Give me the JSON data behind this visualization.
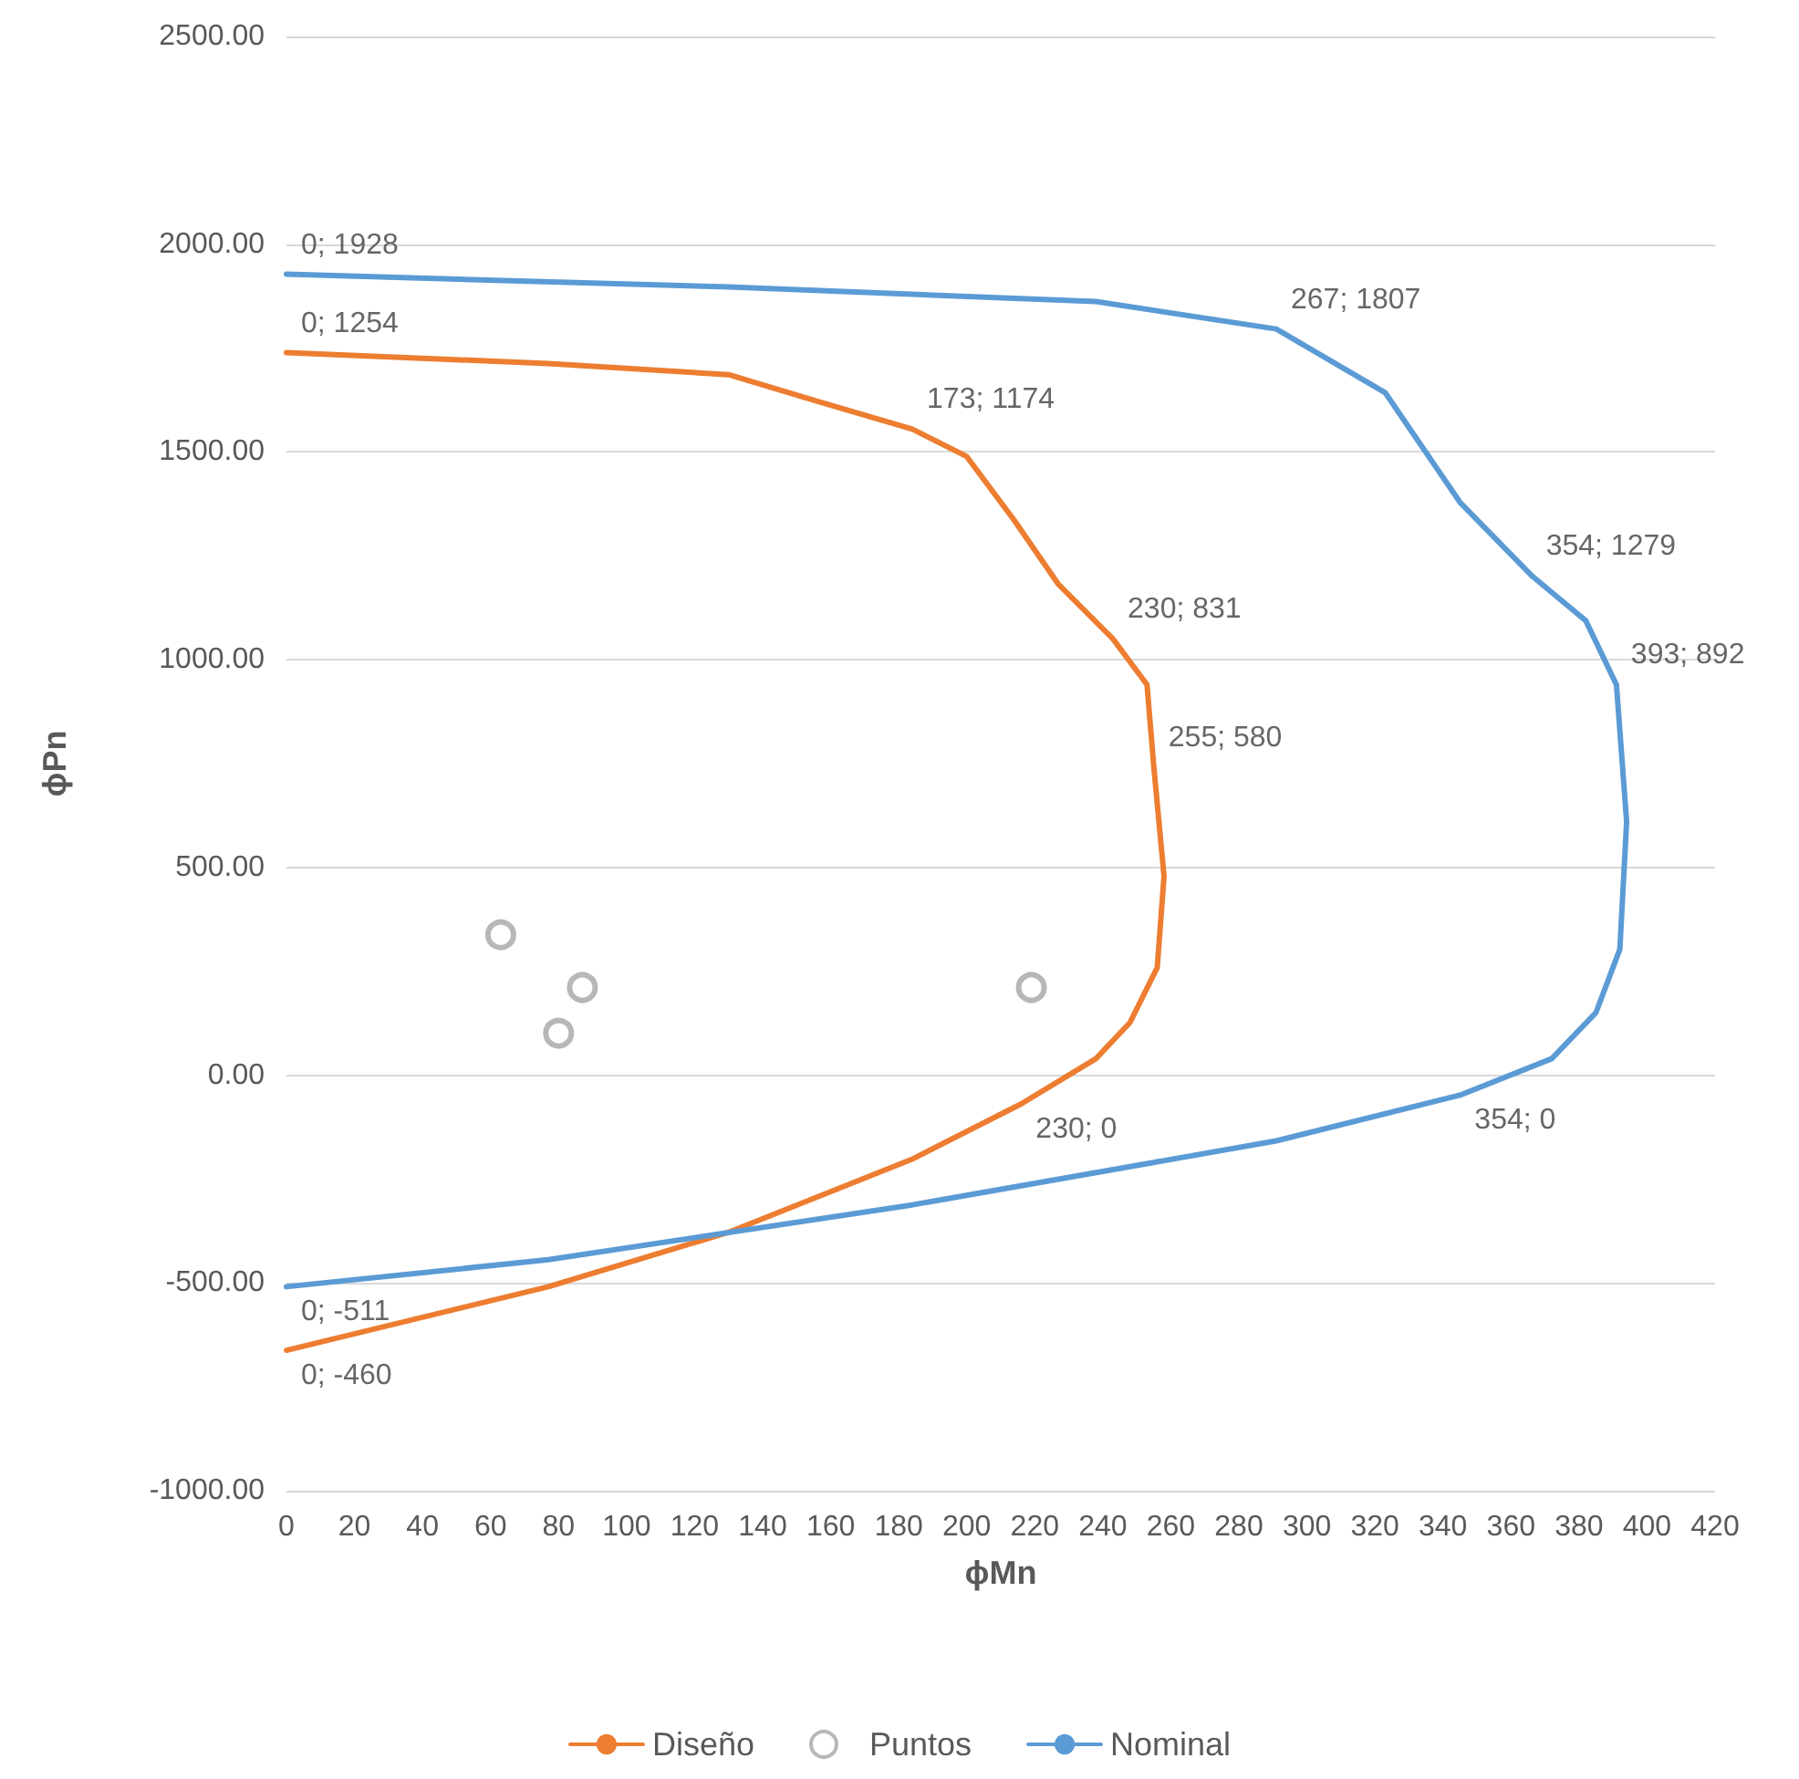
{
  "chart_data": {
    "type": "line",
    "xlabel": "ϕMn",
    "ylabel": "ϕPn",
    "xlim": [
      0,
      420
    ],
    "xticks": [
      0,
      20,
      40,
      60,
      80,
      100,
      120,
      140,
      160,
      180,
      200,
      220,
      240,
      260,
      280,
      300,
      320,
      340,
      360,
      380,
      400,
      420
    ],
    "ylim": [
      -1000,
      2500
    ],
    "yticks": [
      {
        "value": -1000,
        "label": "-1000.00"
      },
      {
        "value": -500,
        "label": "-500.00"
      },
      {
        "value": 0,
        "label": "0.00"
      },
      {
        "value": 500,
        "label": "500.00"
      },
      {
        "value": 1000,
        "label": "1000.00"
      },
      {
        "value": 1500,
        "label": "1500.00"
      },
      {
        "value": 2000,
        "label": "2000.00"
      },
      {
        "value": 2500,
        "label": "2500.00"
      }
    ],
    "grid": "y",
    "legend": "bottom",
    "series": [
      {
        "name": "Diseño",
        "color": "#ed7d31",
        "marker": "none",
        "x": [
          0,
          77,
          130,
          157,
          184,
          200,
          214,
          227,
          243,
          253,
          255,
          258,
          256,
          248,
          238,
          216,
          184,
          130,
          77,
          0
        ],
        "values": [
          1739,
          1713,
          1686,
          1620,
          1555,
          1489,
          1335,
          1181,
          1050,
          940,
          742,
          479,
          259,
          127,
          40,
          -69,
          -202,
          -378,
          -509,
          -662
        ]
      },
      {
        "name": "Puntos",
        "type": "scatter",
        "color": "#a5a5a5",
        "marker": "circle",
        "x": [
          63,
          87,
          80,
          219
        ],
        "values": [
          338,
          211,
          101,
          211
        ]
      },
      {
        "name": "Nominal",
        "color": "#5b9bd5",
        "marker": "none",
        "x": [
          0,
          130,
          238,
          291,
          323,
          345,
          366,
          382,
          391,
          394,
          392,
          385,
          372,
          345,
          291,
          184,
          77,
          0
        ],
        "values": [
          1928,
          1897,
          1862,
          1796,
          1643,
          1379,
          1203,
          1094,
          940,
          610,
          303,
          151,
          40,
          -48,
          -158,
          -312,
          -444,
          -509
        ]
      }
    ],
    "annotations": [
      {
        "text": "0; 1928",
        "x": 0,
        "y": 1928
      },
      {
        "text": "0; 1254",
        "x": 0,
        "y": 1739
      },
      {
        "text": "173; 1174",
        "x": 184,
        "y": 1555
      },
      {
        "text": "267; 1807",
        "x": 291,
        "y": 1796
      },
      {
        "text": "230; 831",
        "x": 243,
        "y": 1050
      },
      {
        "text": "354; 1279",
        "x": 366,
        "y": 1203
      },
      {
        "text": "393; 892",
        "x": 391,
        "y": 940
      },
      {
        "text": "255; 580",
        "x": 255,
        "y": 742
      },
      {
        "text": "230; 0",
        "x": 216,
        "y": -69
      },
      {
        "text": "354; 0",
        "x": 345,
        "y": -48
      },
      {
        "text": "0; -511",
        "x": 0,
        "y": -509
      },
      {
        "text": "0; -460",
        "x": 0,
        "y": -662
      }
    ]
  }
}
